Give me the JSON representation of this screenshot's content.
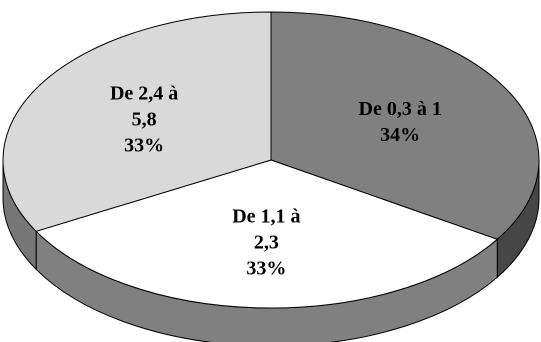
{
  "chart_data": {
    "type": "pie",
    "style": "3d",
    "slices": [
      {
        "label_lines": [
          "De 0,3 à 1"
        ],
        "percent_label": "34%",
        "value": 34,
        "color": "#808080"
      },
      {
        "label_lines": [
          "De 1,1 à",
          "2,3"
        ],
        "percent_label": "33%",
        "value": 33,
        "color": "#ffffff"
      },
      {
        "label_lines": [
          "De 2,4 à",
          "5,8"
        ],
        "percent_label": "33%",
        "value": 33,
        "color": "#d9d9d9"
      }
    ]
  }
}
